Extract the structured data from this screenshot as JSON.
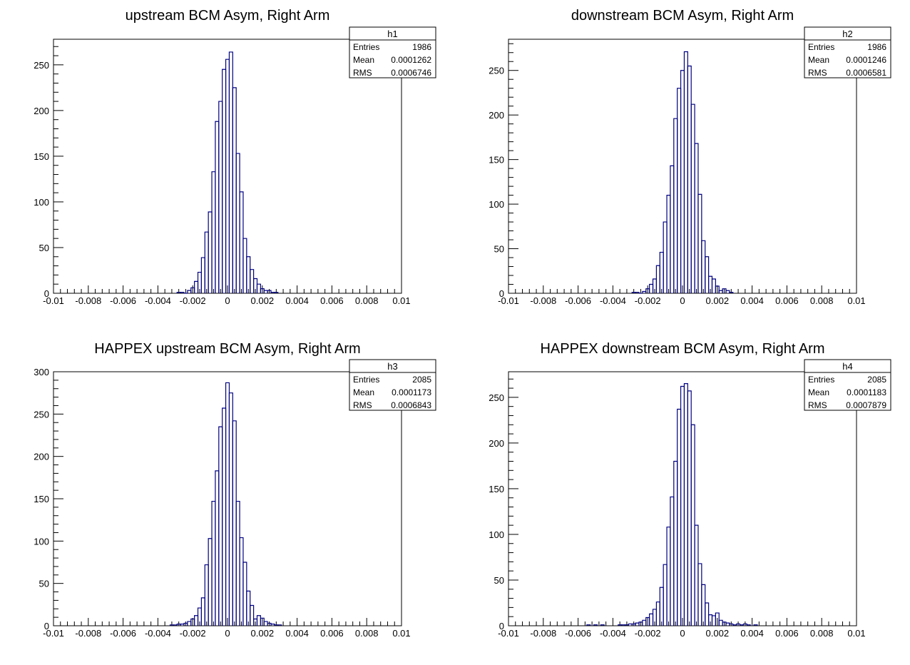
{
  "chart_data": [
    {
      "type": "histogram",
      "title": "upstream BCM Asym, Right Arm",
      "xlim": [
        -0.01,
        0.01
      ],
      "ylim": [
        0,
        278
      ],
      "x_tick_labels": [
        "-0.01",
        "-0.008",
        "-0.006",
        "-0.004",
        "-0.002",
        "0",
        "0.002",
        "0.004",
        "0.006",
        "0.008",
        "0.01"
      ],
      "y_ticks": [
        0,
        50,
        100,
        150,
        200,
        250
      ],
      "line_color": "#00007f",
      "bin_width": 0.0002,
      "bins": [
        {
          "x": -0.0028,
          "y": 1
        },
        {
          "x": -0.0026,
          "y": 1
        },
        {
          "x": -0.0024,
          "y": 0
        },
        {
          "x": -0.0022,
          "y": 3
        },
        {
          "x": -0.002,
          "y": 6
        },
        {
          "x": -0.0018,
          "y": 13
        },
        {
          "x": -0.0016,
          "y": 23
        },
        {
          "x": -0.0014,
          "y": 39
        },
        {
          "x": -0.0012,
          "y": 67
        },
        {
          "x": -0.001,
          "y": 89
        },
        {
          "x": -0.0008,
          "y": 133
        },
        {
          "x": -0.0006,
          "y": 188
        },
        {
          "x": -0.0004,
          "y": 210
        },
        {
          "x": -0.0002,
          "y": 245
        },
        {
          "x": 0.0,
          "y": 256
        },
        {
          "x": 0.0002,
          "y": 264
        },
        {
          "x": 0.0004,
          "y": 225
        },
        {
          "x": 0.0006,
          "y": 153
        },
        {
          "x": 0.0008,
          "y": 111
        },
        {
          "x": 0.001,
          "y": 60
        },
        {
          "x": 0.0012,
          "y": 40
        },
        {
          "x": 0.0014,
          "y": 26
        },
        {
          "x": 0.0016,
          "y": 16
        },
        {
          "x": 0.0018,
          "y": 10
        },
        {
          "x": 0.002,
          "y": 5
        },
        {
          "x": 0.0022,
          "y": 3
        },
        {
          "x": 0.0024,
          "y": 3
        },
        {
          "x": 0.0026,
          "y": 1
        },
        {
          "x": 0.0028,
          "y": 1
        }
      ],
      "stats": {
        "name": "h1",
        "rows": [
          [
            "Entries",
            "1986"
          ],
          [
            "Mean",
            "0.0001262"
          ],
          [
            "RMS",
            "0.0006746"
          ]
        ]
      }
    },
    {
      "type": "histogram",
      "title": "downstream BCM Asym, Right Arm",
      "xlim": [
        -0.01,
        0.01
      ],
      "ylim": [
        0,
        285
      ],
      "x_tick_labels": [
        "-0.01",
        "-0.008",
        "-0.006",
        "-0.004",
        "-0.002",
        "0",
        "0.002",
        "0.004",
        "0.006",
        "0.008",
        "0.01"
      ],
      "y_ticks": [
        0,
        50,
        100,
        150,
        200,
        250
      ],
      "line_color": "#00007f",
      "bin_width": 0.0002,
      "bins": [
        {
          "x": -0.0028,
          "y": 1
        },
        {
          "x": -0.0026,
          "y": 1
        },
        {
          "x": -0.0024,
          "y": 0
        },
        {
          "x": -0.0022,
          "y": 2
        },
        {
          "x": -0.002,
          "y": 5
        },
        {
          "x": -0.0018,
          "y": 10
        },
        {
          "x": -0.0016,
          "y": 16
        },
        {
          "x": -0.0014,
          "y": 31
        },
        {
          "x": -0.0012,
          "y": 46
        },
        {
          "x": -0.001,
          "y": 80
        },
        {
          "x": -0.0008,
          "y": 110
        },
        {
          "x": -0.0006,
          "y": 143
        },
        {
          "x": -0.0004,
          "y": 196
        },
        {
          "x": -0.0002,
          "y": 230
        },
        {
          "x": 0.0,
          "y": 250
        },
        {
          "x": 0.0002,
          "y": 271
        },
        {
          "x": 0.0004,
          "y": 255
        },
        {
          "x": 0.0006,
          "y": 212
        },
        {
          "x": 0.0008,
          "y": 168
        },
        {
          "x": 0.001,
          "y": 111
        },
        {
          "x": 0.0012,
          "y": 59
        },
        {
          "x": 0.0014,
          "y": 41
        },
        {
          "x": 0.0016,
          "y": 19
        },
        {
          "x": 0.0018,
          "y": 16
        },
        {
          "x": 0.002,
          "y": 8
        },
        {
          "x": 0.0022,
          "y": 3
        },
        {
          "x": 0.0024,
          "y": 5
        },
        {
          "x": 0.0026,
          "y": 3
        },
        {
          "x": 0.0028,
          "y": 1
        }
      ],
      "stats": {
        "name": "h2",
        "rows": [
          [
            "Entries",
            "1986"
          ],
          [
            "Mean",
            "0.0001246"
          ],
          [
            "RMS",
            "0.0006581"
          ]
        ]
      }
    },
    {
      "type": "histogram",
      "title": "HAPPEX upstream BCM Asym, Right Arm",
      "xlim": [
        -0.01,
        0.01
      ],
      "ylim": [
        0,
        300
      ],
      "x_tick_labels": [
        "-0.01",
        "-0.008",
        "-0.006",
        "-0.004",
        "-0.002",
        "0",
        "0.002",
        "0.004",
        "0.006",
        "0.008",
        "0.01"
      ],
      "y_ticks": [
        0,
        50,
        100,
        150,
        200,
        250,
        300
      ],
      "line_color": "#00007f",
      "bin_width": 0.0002,
      "bins": [
        {
          "x": -0.0032,
          "y": 1
        },
        {
          "x": -0.003,
          "y": 1
        },
        {
          "x": -0.0028,
          "y": 2
        },
        {
          "x": -0.0026,
          "y": 2
        },
        {
          "x": -0.0024,
          "y": 3
        },
        {
          "x": -0.0022,
          "y": 5
        },
        {
          "x": -0.002,
          "y": 8
        },
        {
          "x": -0.0018,
          "y": 12
        },
        {
          "x": -0.0016,
          "y": 21
        },
        {
          "x": -0.0014,
          "y": 33
        },
        {
          "x": -0.0012,
          "y": 72
        },
        {
          "x": -0.001,
          "y": 103
        },
        {
          "x": -0.0008,
          "y": 147
        },
        {
          "x": -0.0006,
          "y": 183
        },
        {
          "x": -0.0004,
          "y": 235
        },
        {
          "x": -0.0002,
          "y": 257
        },
        {
          "x": 0.0,
          "y": 287
        },
        {
          "x": 0.0002,
          "y": 275
        },
        {
          "x": 0.0004,
          "y": 242
        },
        {
          "x": 0.0006,
          "y": 147
        },
        {
          "x": 0.0008,
          "y": 104
        },
        {
          "x": 0.001,
          "y": 75
        },
        {
          "x": 0.0012,
          "y": 41
        },
        {
          "x": 0.0014,
          "y": 24
        },
        {
          "x": 0.0016,
          "y": 8
        },
        {
          "x": 0.0018,
          "y": 12
        },
        {
          "x": 0.002,
          "y": 9
        },
        {
          "x": 0.0022,
          "y": 5
        },
        {
          "x": 0.0024,
          "y": 3
        },
        {
          "x": 0.0026,
          "y": 2
        },
        {
          "x": 0.0028,
          "y": 1
        },
        {
          "x": 0.003,
          "y": 1
        }
      ],
      "stats": {
        "name": "h3",
        "rows": [
          [
            "Entries",
            "2085"
          ],
          [
            "Mean",
            "0.0001173"
          ],
          [
            "RMS",
            "0.0006843"
          ]
        ]
      }
    },
    {
      "type": "histogram",
      "title": "HAPPEX downstream BCM Asym, Right Arm",
      "xlim": [
        -0.01,
        0.01
      ],
      "ylim": [
        0,
        278
      ],
      "x_tick_labels": [
        "-0.01",
        "-0.008",
        "-0.006",
        "-0.004",
        "-0.002",
        "0",
        "0.002",
        "0.004",
        "0.006",
        "0.008",
        "0.01"
      ],
      "y_ticks": [
        0,
        50,
        100,
        150,
        200,
        250
      ],
      "line_color": "#00007f",
      "bin_width": 0.0002,
      "bins": [
        {
          "x": -0.0054,
          "y": 1
        },
        {
          "x": -0.005,
          "y": 1
        },
        {
          "x": -0.0046,
          "y": 1
        },
        {
          "x": -0.0036,
          "y": 1
        },
        {
          "x": -0.0034,
          "y": 1
        },
        {
          "x": -0.0032,
          "y": 1
        },
        {
          "x": -0.003,
          "y": 2
        },
        {
          "x": -0.0028,
          "y": 2
        },
        {
          "x": -0.0026,
          "y": 3
        },
        {
          "x": -0.0024,
          "y": 4
        },
        {
          "x": -0.0022,
          "y": 6
        },
        {
          "x": -0.002,
          "y": 9
        },
        {
          "x": -0.0018,
          "y": 13
        },
        {
          "x": -0.0016,
          "y": 18
        },
        {
          "x": -0.0014,
          "y": 26
        },
        {
          "x": -0.0012,
          "y": 42
        },
        {
          "x": -0.001,
          "y": 67
        },
        {
          "x": -0.0008,
          "y": 108
        },
        {
          "x": -0.0006,
          "y": 141
        },
        {
          "x": -0.0004,
          "y": 180
        },
        {
          "x": -0.0002,
          "y": 237
        },
        {
          "x": 0.0,
          "y": 262
        },
        {
          "x": 0.0002,
          "y": 265
        },
        {
          "x": 0.0004,
          "y": 257
        },
        {
          "x": 0.0006,
          "y": 220
        },
        {
          "x": 0.0008,
          "y": 110
        },
        {
          "x": 0.001,
          "y": 68
        },
        {
          "x": 0.0012,
          "y": 45
        },
        {
          "x": 0.0014,
          "y": 25
        },
        {
          "x": 0.0016,
          "y": 12
        },
        {
          "x": 0.0018,
          "y": 11
        },
        {
          "x": 0.002,
          "y": 14
        },
        {
          "x": 0.0022,
          "y": 6
        },
        {
          "x": 0.0024,
          "y": 4
        },
        {
          "x": 0.0026,
          "y": 3
        },
        {
          "x": 0.0028,
          "y": 2
        },
        {
          "x": 0.003,
          "y": 1
        },
        {
          "x": 0.0032,
          "y": 2
        },
        {
          "x": 0.0034,
          "y": 1
        },
        {
          "x": 0.0036,
          "y": 2
        },
        {
          "x": 0.0038,
          "y": 1
        },
        {
          "x": 0.0042,
          "y": 1
        }
      ],
      "stats": {
        "name": "h4",
        "rows": [
          [
            "Entries",
            "2085"
          ],
          [
            "Mean",
            "0.0001183"
          ],
          [
            "RMS",
            "0.0007879"
          ]
        ]
      }
    }
  ]
}
